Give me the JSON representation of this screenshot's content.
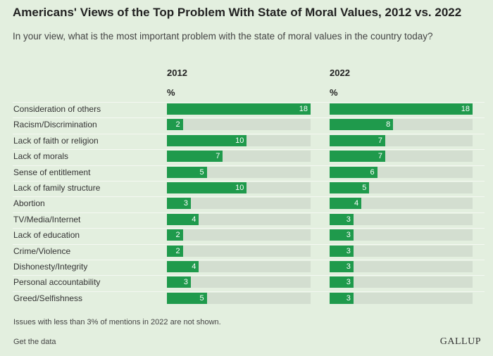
{
  "header": {
    "title": "Americans' Views of the Top Problem With State of Moral Values, 2012 vs. 2022",
    "subtitle": "In your view, what is the most important problem with the state of moral values in the country today?"
  },
  "footer": {
    "note": "Issues with less than 3% of mentions in 2022 are not shown.",
    "get_data": "Get the data",
    "logo": "GALLUP"
  },
  "colors": {
    "bar": "#1f9a4c",
    "track": "#d3ded0",
    "background": "#e3efdf"
  },
  "chart_data": {
    "type": "bar",
    "title": "Americans' Views of the Top Problem With State of Moral Values, 2012 vs. 2022",
    "unit": "%",
    "xlim": [
      0,
      18
    ],
    "categories": [
      "Consideration of others",
      "Racism/Discrimination",
      "Lack of faith or religion",
      "Lack of morals",
      "Sense of entitlement",
      "Lack of family structure",
      "Abortion",
      "TV/Media/Internet",
      "Lack of education",
      "Crime/Violence",
      "Dishonesty/Integrity",
      "Personal accountability",
      "Greed/Selfishness"
    ],
    "series": [
      {
        "name": "2012",
        "unit_label": "%",
        "values": [
          18,
          2,
          10,
          7,
          5,
          10,
          3,
          4,
          2,
          2,
          4,
          3,
          5
        ]
      },
      {
        "name": "2022",
        "unit_label": "%",
        "values": [
          18,
          8,
          7,
          7,
          6,
          5,
          4,
          3,
          3,
          3,
          3,
          3,
          3
        ]
      }
    ]
  }
}
